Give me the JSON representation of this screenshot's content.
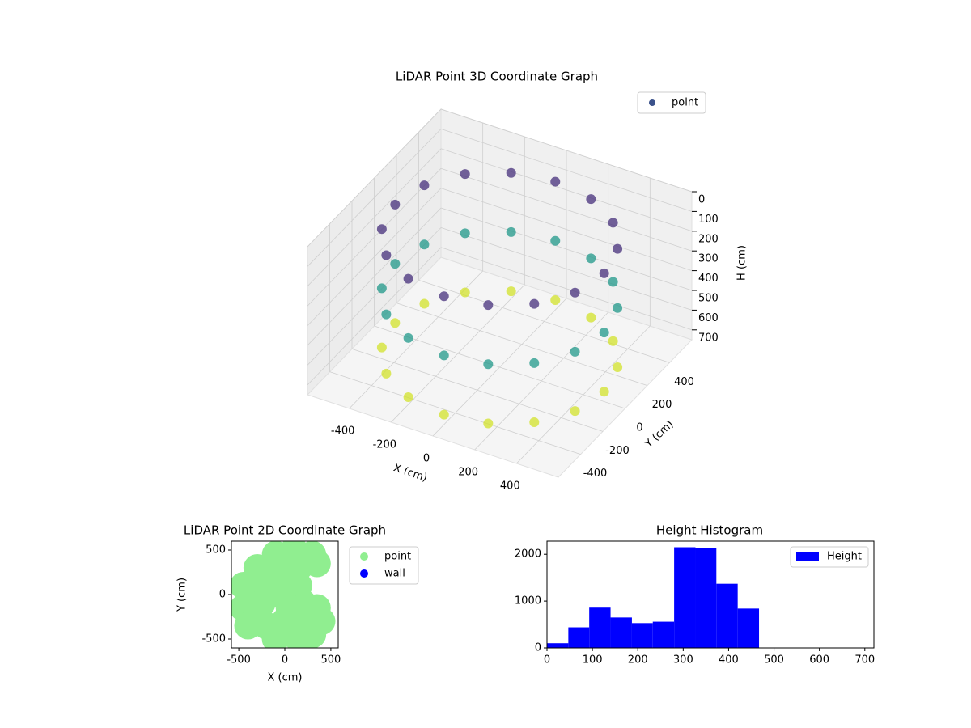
{
  "chart_data": [
    {
      "type": "scatter3d",
      "title": "LiDAR Point 3D Coordinate Graph",
      "xlabel": "X (cm)",
      "ylabel": "Y (cm)",
      "zlabel": "H (cm)",
      "xlim": [
        -600,
        600
      ],
      "ylim": [
        -600,
        600
      ],
      "zlim": [
        0,
        750
      ],
      "z_inverted": true,
      "xticks": [
        -400,
        -200,
        0,
        200,
        400
      ],
      "yticks": [
        -400,
        -200,
        0,
        200,
        400
      ],
      "zticks": [
        0,
        100,
        200,
        300,
        400,
        500,
        600,
        700
      ],
      "colormap": "viridis",
      "grid": true,
      "legend": "upper right",
      "series": [
        {
          "name": "point",
          "color": "#3b528b",
          "x": [
            500,
            462,
            354,
            191,
            0,
            -191,
            -354,
            -462,
            -500,
            -462,
            -354,
            -191,
            0,
            191,
            354,
            462,
            500,
            462,
            354,
            191,
            0,
            -191,
            -354,
            -462,
            -500,
            -462,
            -354,
            -191,
            0,
            191,
            354,
            462,
            500,
            462,
            354,
            191,
            0,
            -191,
            -354,
            -462,
            -500,
            -462,
            -354,
            -191,
            0,
            191,
            354,
            462
          ],
          "y": [
            0,
            191,
            354,
            462,
            500,
            462,
            354,
            191,
            0,
            -191,
            -354,
            -462,
            -500,
            -462,
            -354,
            -191,
            0,
            191,
            354,
            462,
            500,
            462,
            354,
            191,
            0,
            -191,
            -354,
            -462,
            -500,
            -462,
            -354,
            -191,
            0,
            191,
            354,
            462,
            500,
            462,
            354,
            191,
            0,
            -191,
            -354,
            -462,
            -500,
            -462,
            -354,
            -191
          ],
          "h": [
            100,
            100,
            100,
            100,
            100,
            100,
            100,
            100,
            100,
            100,
            100,
            100,
            100,
            100,
            100,
            100,
            400,
            400,
            400,
            400,
            400,
            400,
            400,
            400,
            400,
            400,
            400,
            400,
            400,
            400,
            400,
            400,
            700,
            700,
            700,
            700,
            700,
            700,
            700,
            700,
            700,
            700,
            700,
            700,
            700,
            700,
            700,
            700
          ]
        }
      ]
    },
    {
      "type": "scatter",
      "title": "LiDAR Point 2D Coordinate Graph",
      "xlabel": "X (cm)",
      "ylabel": "Y (cm)",
      "xlim": [
        -580,
        580
      ],
      "ylim": [
        -600,
        600
      ],
      "xticks": [
        -500,
        0,
        500
      ],
      "yticks": [
        -500,
        0,
        500
      ],
      "legend": "outside upper right",
      "series": [
        {
          "name": "point",
          "color": "#90ee90",
          "x": [
            -300,
            -100,
            100,
            300,
            -450,
            -250,
            -50,
            150,
            350,
            -450,
            -250,
            -50,
            150,
            200,
            -400,
            -200,
            0,
            200,
            400,
            -100,
            150,
            350,
            -100,
            300,
            50
          ],
          "y": [
            300,
            450,
            500,
            450,
            100,
            150,
            250,
            300,
            350,
            -150,
            -100,
            0,
            100,
            -100,
            -350,
            -350,
            -300,
            -300,
            -300,
            -500,
            -500,
            -150,
            150,
            -450,
            -150
          ]
        },
        {
          "name": "wall",
          "color": "#0000ff",
          "x": [],
          "y": []
        }
      ]
    },
    {
      "type": "histogram",
      "title": "Height Histogram",
      "name": "Height",
      "color": "#0000ff",
      "bins": [
        0,
        47,
        93,
        140,
        187,
        233,
        280,
        327,
        373,
        420,
        467,
        513,
        560,
        607,
        653,
        700
      ],
      "values": [
        100,
        440,
        860,
        650,
        530,
        560,
        2150,
        2130,
        1370,
        840,
        0,
        0,
        0,
        0,
        0
      ],
      "xlim": [
        0,
        720
      ],
      "ylim": [
        0,
        2280
      ],
      "xticks": [
        0,
        100,
        200,
        300,
        400,
        500,
        600,
        700
      ],
      "yticks": [
        0,
        1000,
        2000
      ],
      "legend": "upper right"
    }
  ]
}
